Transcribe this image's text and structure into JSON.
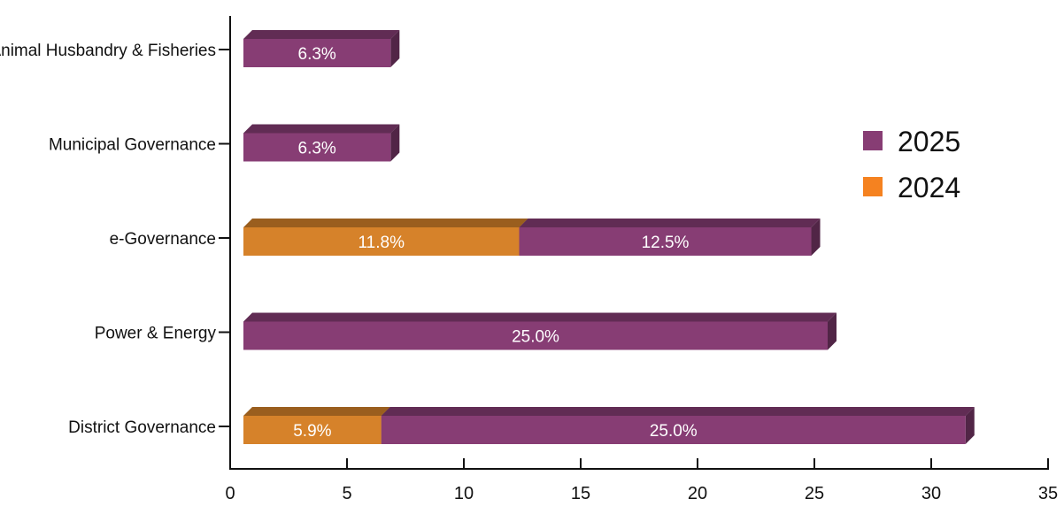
{
  "chart_data": {
    "type": "bar",
    "orientation": "horizontal",
    "stacked": true,
    "title": "",
    "xlabel": "",
    "ylabel": "",
    "xlim": [
      0,
      35
    ],
    "xticks": [
      0,
      5,
      10,
      15,
      20,
      25,
      30,
      35
    ],
    "categories": [
      "Animal Husbandry & Fisheries",
      "Municipal Governance",
      "e-Governance",
      "Power & Energy",
      "District Governance"
    ],
    "series": [
      {
        "name": "2024",
        "color": "#D6822A",
        "values": [
          null,
          null,
          11.8,
          null,
          5.9
        ],
        "labels": [
          "",
          "",
          "11.8%",
          "",
          "5.9%"
        ]
      },
      {
        "name": "2025",
        "color": "#873D74",
        "values": [
          6.3,
          6.3,
          12.5,
          25.0,
          25.0
        ],
        "labels": [
          "6.3%",
          "6.3%",
          "12.5%",
          "25.0%",
          "25.0%"
        ]
      }
    ],
    "legend": {
      "position": "right",
      "entries": [
        {
          "name": "2025",
          "color": "#873D74"
        },
        {
          "name": "2024",
          "color": "#F58220"
        }
      ]
    },
    "grid": false
  }
}
